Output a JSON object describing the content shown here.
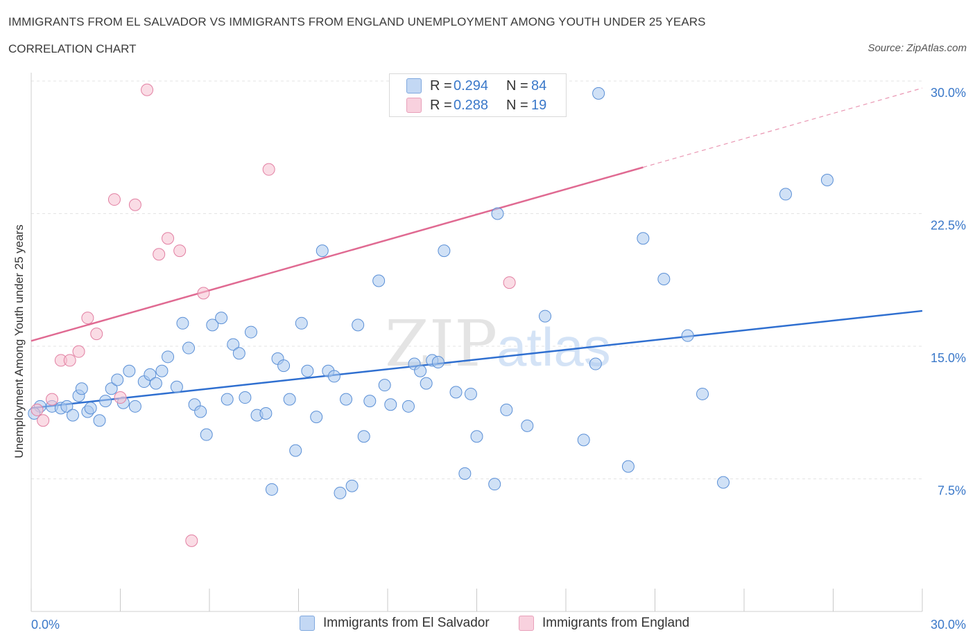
{
  "header": {
    "title": "IMMIGRANTS FROM EL SALVADOR VS IMMIGRANTS FROM ENGLAND UNEMPLOYMENT AMONG YOUTH UNDER 25 YEARS",
    "subtitle": "CORRELATION CHART",
    "source": "Source: ZipAtlas.com"
  },
  "legend": {
    "rows": [
      {
        "r_label": "R =",
        "r_value": "0.294",
        "n_label": "N =",
        "n_value": "84"
      },
      {
        "r_label": "R =",
        "r_value": "0.288",
        "n_label": "N =",
        "n_value": "19"
      }
    ]
  },
  "chart_data": {
    "type": "scatter",
    "ylabel": "Unemployment Among Youth under 25 years",
    "xlim": [
      0,
      30
    ],
    "ylim": [
      0,
      30
    ],
    "x_tick_labels": [
      "0.0%",
      "30.0%"
    ],
    "y_tick_labels": [
      "7.5%",
      "15.0%",
      "22.5%",
      "30.0%"
    ],
    "y_ticks": [
      7.5,
      15,
      22.5,
      30
    ],
    "watermark": "ZIPatlas",
    "grid": true,
    "series": [
      {
        "name": "Immigrants from El Salvador",
        "color": "#a9c8ee",
        "stroke": "#5a8fd6",
        "line_color": "#2f6fd0",
        "trend": {
          "x": [
            0,
            30
          ],
          "y": [
            11.5,
            17.0
          ],
          "dashed_from": null
        },
        "points": [
          [
            0.3,
            11.6
          ],
          [
            0.7,
            11.6
          ],
          [
            1.0,
            11.5
          ],
          [
            1.2,
            11.6
          ],
          [
            1.4,
            11.1
          ],
          [
            1.6,
            12.2
          ],
          [
            1.7,
            12.6
          ],
          [
            1.9,
            11.3
          ],
          [
            2.0,
            11.5
          ],
          [
            2.3,
            10.8
          ],
          [
            2.5,
            11.9
          ],
          [
            2.7,
            12.6
          ],
          [
            2.9,
            13.1
          ],
          [
            3.1,
            11.8
          ],
          [
            3.3,
            13.6
          ],
          [
            3.5,
            11.6
          ],
          [
            3.8,
            13.0
          ],
          [
            4.0,
            13.4
          ],
          [
            4.2,
            12.9
          ],
          [
            4.4,
            13.6
          ],
          [
            4.6,
            14.4
          ],
          [
            4.9,
            12.7
          ],
          [
            5.1,
            16.3
          ],
          [
            5.3,
            14.9
          ],
          [
            5.5,
            11.7
          ],
          [
            5.7,
            11.3
          ],
          [
            5.9,
            10.0
          ],
          [
            6.1,
            16.2
          ],
          [
            6.4,
            16.6
          ],
          [
            6.6,
            12.0
          ],
          [
            6.8,
            15.1
          ],
          [
            7.0,
            14.6
          ],
          [
            7.2,
            12.1
          ],
          [
            7.4,
            15.8
          ],
          [
            7.6,
            11.1
          ],
          [
            7.9,
            11.2
          ],
          [
            8.1,
            6.9
          ],
          [
            8.3,
            14.3
          ],
          [
            8.5,
            13.9
          ],
          [
            8.7,
            12.0
          ],
          [
            8.9,
            9.1
          ],
          [
            9.1,
            16.3
          ],
          [
            9.3,
            13.6
          ],
          [
            9.6,
            11.0
          ],
          [
            9.8,
            20.4
          ],
          [
            10.0,
            13.6
          ],
          [
            10.2,
            13.3
          ],
          [
            10.4,
            6.7
          ],
          [
            10.6,
            12.0
          ],
          [
            10.8,
            7.1
          ],
          [
            11.0,
            16.2
          ],
          [
            11.2,
            9.9
          ],
          [
            11.4,
            11.9
          ],
          [
            11.7,
            18.7
          ],
          [
            11.9,
            12.8
          ],
          [
            12.1,
            11.7
          ],
          [
            12.7,
            11.6
          ],
          [
            12.9,
            14.0
          ],
          [
            13.1,
            13.6
          ],
          [
            13.3,
            12.9
          ],
          [
            13.5,
            14.2
          ],
          [
            13.7,
            14.1
          ],
          [
            13.9,
            20.4
          ],
          [
            14.3,
            12.4
          ],
          [
            14.6,
            7.8
          ],
          [
            14.8,
            12.3
          ],
          [
            15.0,
            9.9
          ],
          [
            15.6,
            7.2
          ],
          [
            15.7,
            22.5
          ],
          [
            16.0,
            11.4
          ],
          [
            16.7,
            10.5
          ],
          [
            17.3,
            16.7
          ],
          [
            18.6,
            9.7
          ],
          [
            19.0,
            14.0
          ],
          [
            19.1,
            29.3
          ],
          [
            20.1,
            8.2
          ],
          [
            20.6,
            21.1
          ],
          [
            21.3,
            18.8
          ],
          [
            22.1,
            15.6
          ],
          [
            22.6,
            12.3
          ],
          [
            23.3,
            7.3
          ],
          [
            25.4,
            23.6
          ],
          [
            26.8,
            24.4
          ],
          [
            0.1,
            11.2
          ]
        ]
      },
      {
        "name": "Immigrants from England",
        "color": "#f6bfd0",
        "stroke": "#e27fa2",
        "line_color": "#e06a92",
        "trend": {
          "x": [
            0,
            30
          ],
          "y": [
            15.3,
            29.6
          ],
          "dashed_from": 20.6
        },
        "points": [
          [
            0.4,
            10.8
          ],
          [
            0.7,
            12.0
          ],
          [
            1.0,
            14.2
          ],
          [
            1.3,
            14.2
          ],
          [
            1.6,
            14.7
          ],
          [
            1.9,
            16.6
          ],
          [
            2.2,
            15.7
          ],
          [
            2.8,
            23.3
          ],
          [
            3.0,
            12.1
          ],
          [
            3.5,
            23.0
          ],
          [
            3.9,
            29.5
          ],
          [
            4.3,
            20.2
          ],
          [
            4.6,
            21.1
          ],
          [
            5.0,
            20.4
          ],
          [
            5.4,
            4.0
          ],
          [
            5.8,
            18.0
          ],
          [
            8.0,
            25.0
          ],
          [
            16.1,
            18.6
          ],
          [
            0.2,
            11.4
          ]
        ]
      }
    ]
  },
  "bottom_legend": {
    "items": [
      {
        "label": "Immigrants from El Salvador"
      },
      {
        "label": "Immigrants from England"
      }
    ]
  }
}
